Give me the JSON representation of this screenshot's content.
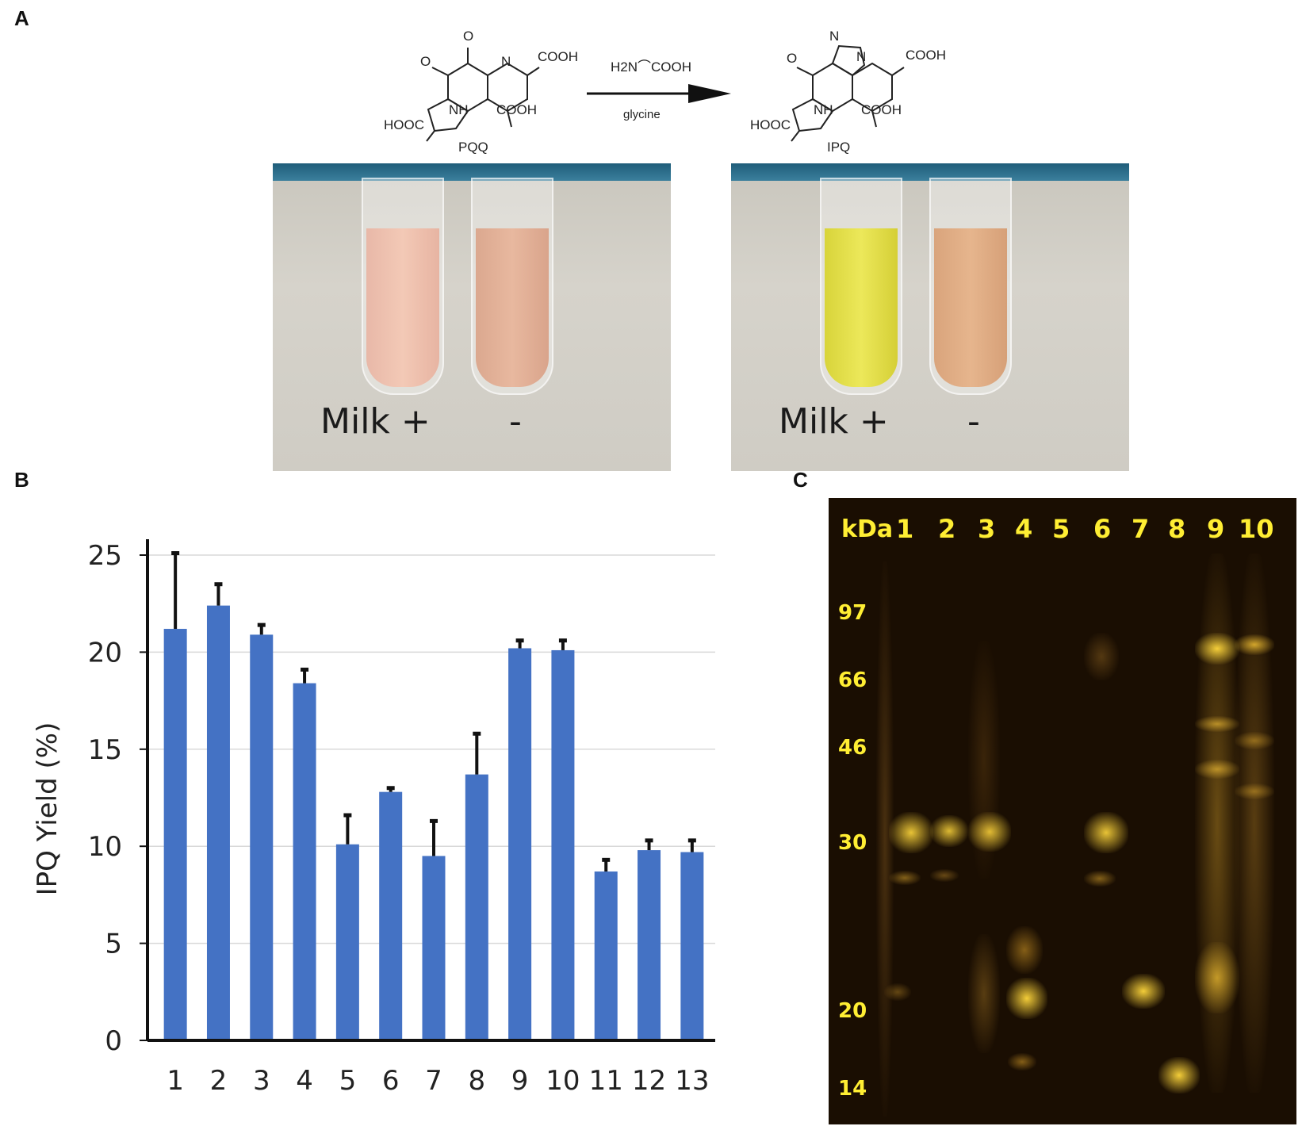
{
  "panels": {
    "a_label": "A",
    "b_label": "B",
    "c_label": "C"
  },
  "reaction": {
    "reactant_name": "PQQ",
    "product_name": "IPQ",
    "reagent_formula": "H2N⌒COOH",
    "reagent_name": "glycine",
    "atoms": {
      "o": "O",
      "n": "N",
      "nh": "NH",
      "cooh": "COOH",
      "hooc": "HOOC"
    }
  },
  "photos": {
    "left": {
      "milk_label": "Milk +",
      "minus_label": "-"
    },
    "right": {
      "milk_label": "Milk +",
      "minus_label": "-"
    }
  },
  "colors": {
    "bar": "#4472C4",
    "gel_bg": "#1a0e02",
    "gel_label": "#ffee33"
  },
  "chart_data": {
    "type": "bar",
    "title": "",
    "xlabel": "",
    "ylabel": "IPQ Yield (%)",
    "ylim": [
      0,
      25
    ],
    "yticks": [
      "0",
      "5",
      "10",
      "15",
      "20",
      "25"
    ],
    "categories": [
      "1",
      "2",
      "3",
      "4",
      "5",
      "6",
      "7",
      "8",
      "9",
      "10",
      "11",
      "12",
      "13"
    ],
    "values": [
      21.2,
      22.4,
      20.9,
      18.4,
      10.1,
      12.8,
      9.5,
      13.7,
      20.2,
      20.1,
      8.7,
      9.8,
      9.7
    ],
    "errors": [
      3.9,
      1.1,
      0.5,
      0.7,
      1.5,
      0.2,
      1.8,
      2.1,
      0.4,
      0.5,
      0.6,
      0.5,
      0.6
    ],
    "grid": true
  },
  "gel": {
    "kda_label": "kDa",
    "lanes": [
      "1",
      "2",
      "3",
      "4",
      "5",
      "6",
      "7",
      "8",
      "9",
      "10"
    ],
    "markers": [
      "97",
      "66",
      "46",
      "30",
      "20",
      "14"
    ]
  }
}
